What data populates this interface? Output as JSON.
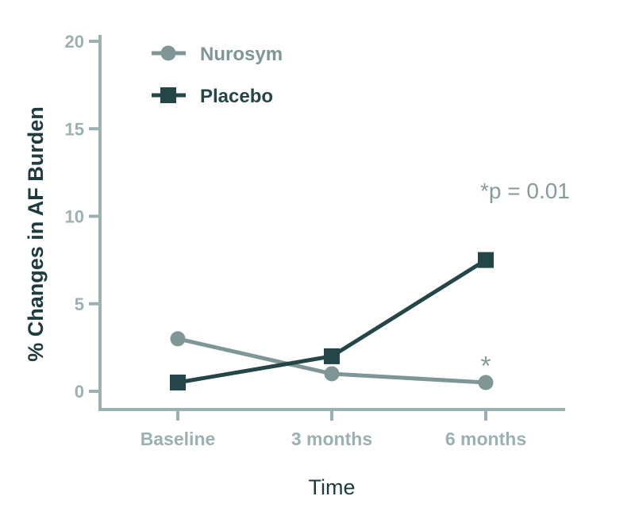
{
  "colors": {
    "axis": "#9bb0b0",
    "nurosym": "#7f9696",
    "placebo": "#244648",
    "ylabel": "#1f3b3d",
    "xlabel": "#1f3b3d",
    "annotation": "#869c9c"
  },
  "chart_data": {
    "type": "line",
    "title": "",
    "xlabel": "Time",
    "ylabel": "% Changes in AF Burden",
    "categories": [
      "Baseline",
      "3 months",
      "6 months"
    ],
    "ylim": [
      0,
      20
    ],
    "yticks": [
      0,
      5,
      10,
      15,
      20
    ],
    "grid": false,
    "legend_position": "top-left",
    "series": [
      {
        "name": "Nurosym",
        "marker": "circle",
        "values": [
          3,
          1,
          0.5
        ]
      },
      {
        "name": "Placebo",
        "marker": "square",
        "values": [
          0.5,
          2,
          7.5
        ]
      }
    ],
    "annotations": [
      {
        "text": "*p = 0.01"
      },
      {
        "text": "*",
        "category": "6 months",
        "y": 2.2
      }
    ]
  }
}
